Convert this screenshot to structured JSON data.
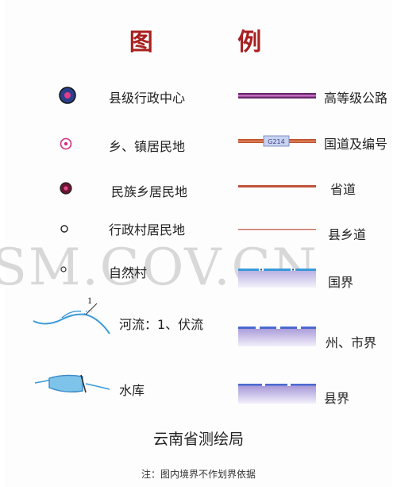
{
  "legend_title": "图  例",
  "watermark": "SM.GOV.CN",
  "settlements": [
    {
      "label": "县级行政中心",
      "icon": "county-seat-icon"
    },
    {
      "label": "乡、镇居民地",
      "icon": "township-icon"
    },
    {
      "label": "民族乡居民地",
      "icon": "ethnic-township-icon"
    },
    {
      "label": "行政村居民地",
      "icon": "admin-village-icon"
    },
    {
      "label": "自然村",
      "icon": "natural-village-icon"
    },
    {
      "label": "河流：1、伏流",
      "icon": "river-icon",
      "marker": "1"
    },
    {
      "label": "水库",
      "icon": "reservoir-icon"
    }
  ],
  "lines": [
    {
      "label": "高等级公路",
      "icon": "expressway-line-icon",
      "color": "#6a2a6e"
    },
    {
      "label": "国道及编号",
      "icon": "national-road-icon",
      "badge": "G214",
      "color": "#c2532d"
    },
    {
      "label": "省道",
      "icon": "provincial-road-icon",
      "color": "#c0533a"
    },
    {
      "label": "县乡道",
      "icon": "county-road-icon",
      "color": "#c86a5a"
    },
    {
      "label": "国界",
      "icon": "national-boundary-icon",
      "color": "#3a9ad9"
    },
    {
      "label": "州、市界",
      "icon": "prefecture-boundary-icon",
      "color": "#9a7ac4"
    },
    {
      "label": "县界",
      "icon": "county-boundary-icon",
      "color": "#8a6ac0"
    }
  ],
  "organization": "云南省测绘局",
  "note": "注：图内境界不作划界依据"
}
